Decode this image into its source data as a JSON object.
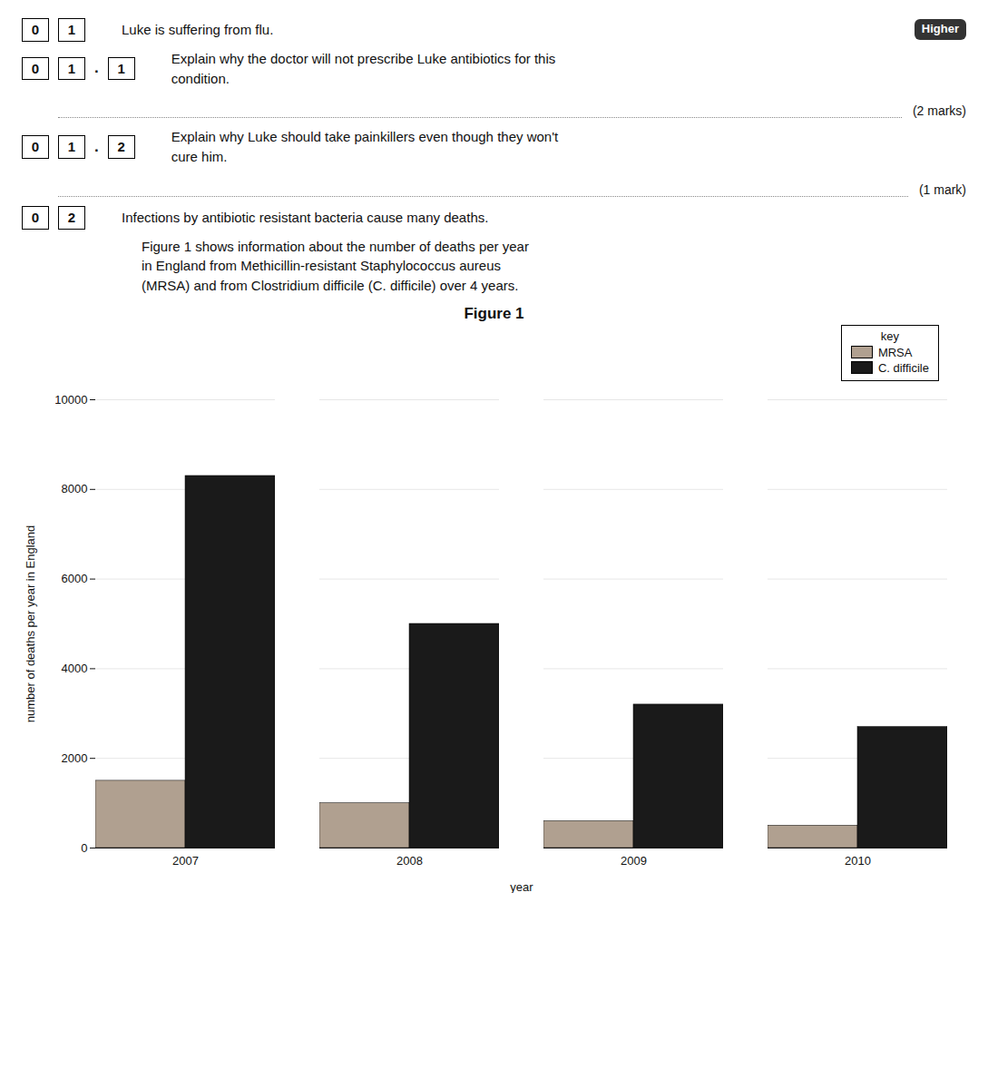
{
  "chart_data": {
    "type": "bar",
    "title": "Figure 1",
    "xlabel": "year",
    "ylabel": "number of deaths per year in England",
    "categories": [
      "2007",
      "2008",
      "2009",
      "2010"
    ],
    "series": [
      {
        "name": "MRSA",
        "color": "#b0a090",
        "values": [
          1500,
          1000,
          600,
          500
        ]
      },
      {
        "name": "C. difficile",
        "color": "#1a1a1a",
        "values": [
          8300,
          5000,
          3200,
          2700
        ]
      }
    ],
    "ylim": [
      0,
      10000
    ],
    "yticks": [
      0,
      2000,
      4000,
      6000,
      8000,
      10000
    ],
    "grid": true,
    "legend": "upper right",
    "legend_title": "key",
    "annotations": [
      [
        "0",
        "1",
        "Luke is suffering from flu.",
        "Higher"
      ],
      [
        "0",
        "1",
        ".",
        "1",
        "Explain why the doctor will not prescribe Luke antibiotics for this\ncondition."
      ],
      [
        "(2 marks)"
      ],
      [
        "0",
        "1",
        ".",
        "2",
        "Explain why Luke should take painkillers even though they won't\ncure him."
      ],
      [
        "(1 mark)"
      ],
      [
        "0",
        "2",
        "Infections by antibiotic resistant bacteria cause many deaths."
      ],
      [
        "Figure 1 shows information about the number of deaths per year\nin England from Methicillin-resistant Staphylococcus aureus\n(MRSA) and from Clostridium difficile (C. difficile) over 4 years."
      ]
    ]
  }
}
